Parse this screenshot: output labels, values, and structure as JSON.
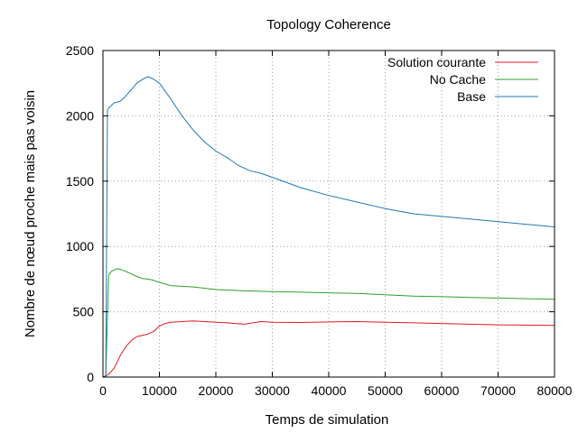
{
  "chart_data": {
    "type": "line",
    "title": "Topology Coherence",
    "xlabel": "Temps de simulation",
    "ylabel": "Nombre de nœud proche mais pas voisin",
    "xlim": [
      0,
      80000
    ],
    "ylim": [
      0,
      2500
    ],
    "x_ticks": [
      0,
      10000,
      20000,
      30000,
      40000,
      50000,
      60000,
      70000,
      80000
    ],
    "y_ticks": [
      0,
      500,
      1000,
      1500,
      2000,
      2500
    ],
    "grid": true,
    "legend_position": "top-right",
    "series": [
      {
        "name": "Solution courante",
        "color": "#e41a1c",
        "x": [
          0,
          1000,
          2000,
          3000,
          4000,
          5000,
          6000,
          7000,
          8000,
          9000,
          10000,
          11000,
          12000,
          14000,
          16000,
          18000,
          20000,
          22000,
          25000,
          28000,
          30000,
          35000,
          40000,
          45000,
          50000,
          55000,
          60000,
          65000,
          70000,
          75000,
          80000
        ],
        "values": [
          0,
          20,
          70,
          160,
          230,
          280,
          310,
          320,
          330,
          350,
          390,
          410,
          420,
          425,
          430,
          425,
          420,
          415,
          405,
          425,
          420,
          418,
          422,
          425,
          420,
          415,
          410,
          405,
          400,
          398,
          395
        ]
      },
      {
        "name": "No Cache",
        "color": "#2ca02c",
        "x": [
          500,
          1000,
          1500,
          2000,
          2500,
          3000,
          4000,
          5000,
          6000,
          7000,
          8000,
          9000,
          10000,
          12000,
          14000,
          16000,
          18000,
          20000,
          25000,
          30000,
          35000,
          40000,
          45000,
          50000,
          55000,
          60000,
          65000,
          70000,
          75000,
          80000
        ],
        "values": [
          0,
          780,
          810,
          820,
          830,
          825,
          810,
          790,
          770,
          755,
          750,
          740,
          725,
          700,
          695,
          690,
          680,
          670,
          660,
          655,
          650,
          645,
          640,
          630,
          620,
          615,
          610,
          605,
          600,
          595
        ]
      },
      {
        "name": "Base",
        "color": "#1f78b4",
        "x": [
          500,
          800,
          1000,
          2000,
          3000,
          4000,
          5000,
          6000,
          7000,
          8000,
          9000,
          10000,
          12000,
          14000,
          16000,
          18000,
          20000,
          22000,
          24000,
          26000,
          28000,
          30000,
          35000,
          40000,
          45000,
          50000,
          55000,
          60000,
          65000,
          70000,
          75000,
          80000
        ],
        "values": [
          0,
          2040,
          2060,
          2100,
          2110,
          2150,
          2200,
          2250,
          2280,
          2300,
          2280,
          2250,
          2130,
          2000,
          1890,
          1800,
          1730,
          1680,
          1620,
          1580,
          1560,
          1530,
          1450,
          1390,
          1340,
          1290,
          1250,
          1230,
          1210,
          1190,
          1170,
          1150
        ]
      }
    ]
  }
}
